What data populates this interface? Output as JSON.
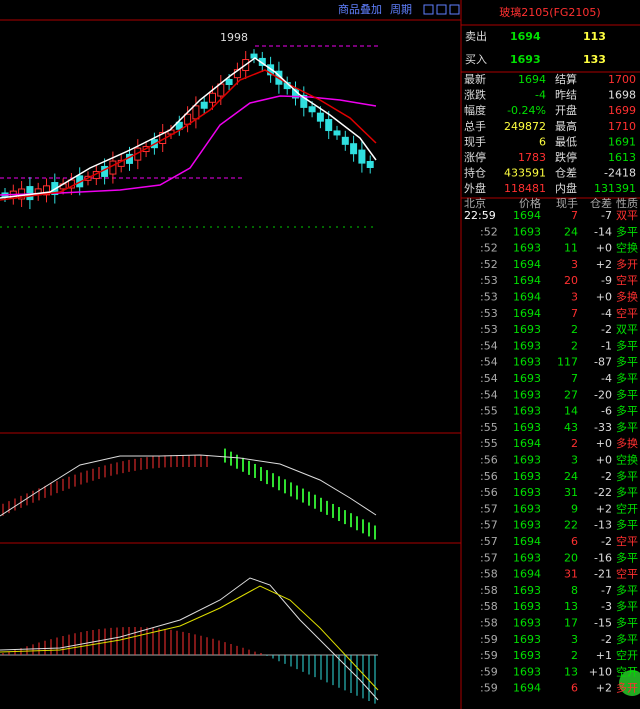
{
  "toolbar": {
    "overlay": "商品叠加",
    "period": "周期"
  },
  "chart": {
    "high_label": "1998"
  },
  "quote": {
    "title": "玻璃2105(FG2105)",
    "ask": {
      "label": "卖出",
      "price": "1694",
      "volume": "113"
    },
    "bid": {
      "label": "买入",
      "price": "1693",
      "volume": "133"
    },
    "stats": [
      [
        {
          "label": "最新",
          "value": "1694",
          "color": "#00e000"
        },
        {
          "label": "结算",
          "value": "1700",
          "color": "#ff3030"
        }
      ],
      [
        {
          "label": "涨跌",
          "value": "-4",
          "color": "#00e000"
        },
        {
          "label": "昨结",
          "value": "1698",
          "color": "#e0e0e0"
        }
      ],
      [
        {
          "label": "幅度",
          "value": "-0.24%",
          "color": "#00e000"
        },
        {
          "label": "开盘",
          "value": "1699",
          "color": "#ff3030"
        }
      ],
      [
        {
          "label": "总手",
          "value": "249872",
          "color": "#ffff40"
        },
        {
          "label": "最高",
          "value": "1710",
          "color": "#ff3030"
        }
      ],
      [
        {
          "label": "现手",
          "value": "6",
          "color": "#ffff40"
        },
        {
          "label": "最低",
          "value": "1691",
          "color": "#00e000"
        }
      ],
      [
        {
          "label": "涨停",
          "value": "1783",
          "color": "#ff3030"
        },
        {
          "label": "跌停",
          "value": "1613",
          "color": "#00e000"
        }
      ],
      [
        {
          "label": "持仓",
          "value": "433591",
          "color": "#ffff40"
        },
        {
          "label": "仓差",
          "value": "-2418",
          "color": "#e0e0e0"
        }
      ],
      [
        {
          "label": "外盘",
          "value": "118481",
          "color": "#ff3030"
        },
        {
          "label": "内盘",
          "value": "131391",
          "color": "#00e000"
        }
      ]
    ]
  },
  "ticks": {
    "header": [
      "北京",
      "价格",
      "现手",
      "仓差",
      "性质"
    ],
    "rows": [
      {
        "time": "22:59",
        "price": "1694",
        "vol": "7",
        "oi": "-7",
        "kind": "双平",
        "color": "#ff3030"
      },
      {
        "time": ":52",
        "price": "1693",
        "vol": "24",
        "oi": "-14",
        "kind": "多平",
        "color": "#00e000"
      },
      {
        "time": ":52",
        "price": "1693",
        "vol": "11",
        "oi": "+0",
        "kind": "空换",
        "color": "#00e000"
      },
      {
        "time": ":52",
        "price": "1694",
        "vol": "3",
        "oi": "+2",
        "kind": "多开",
        "color": "#ff3030"
      },
      {
        "time": ":53",
        "price": "1694",
        "vol": "20",
        "oi": "-9",
        "kind": "空平",
        "color": "#ff3030"
      },
      {
        "time": ":53",
        "price": "1694",
        "vol": "3",
        "oi": "+0",
        "kind": "多换",
        "color": "#ff3030"
      },
      {
        "time": ":53",
        "price": "1694",
        "vol": "7",
        "oi": "-4",
        "kind": "空平",
        "color": "#ff3030"
      },
      {
        "time": ":53",
        "price": "1693",
        "vol": "2",
        "oi": "-2",
        "kind": "双平",
        "color": "#00e000"
      },
      {
        "time": ":54",
        "price": "1693",
        "vol": "2",
        "oi": "-1",
        "kind": "多平",
        "color": "#00e000"
      },
      {
        "time": ":54",
        "price": "1693",
        "vol": "117",
        "oi": "-87",
        "kind": "多平",
        "color": "#00e000"
      },
      {
        "time": ":54",
        "price": "1693",
        "vol": "7",
        "oi": "-4",
        "kind": "多平",
        "color": "#00e000"
      },
      {
        "time": ":54",
        "price": "1693",
        "vol": "27",
        "oi": "-20",
        "kind": "多平",
        "color": "#00e000"
      },
      {
        "time": ":55",
        "price": "1693",
        "vol": "14",
        "oi": "-6",
        "kind": "多平",
        "color": "#00e000"
      },
      {
        "time": ":55",
        "price": "1693",
        "vol": "43",
        "oi": "-33",
        "kind": "多平",
        "color": "#00e000"
      },
      {
        "time": ":55",
        "price": "1694",
        "vol": "2",
        "oi": "+0",
        "kind": "多换",
        "color": "#ff3030"
      },
      {
        "time": ":56",
        "price": "1693",
        "vol": "3",
        "oi": "+0",
        "kind": "空换",
        "color": "#00e000"
      },
      {
        "time": ":56",
        "price": "1693",
        "vol": "24",
        "oi": "-2",
        "kind": "多平",
        "color": "#00e000"
      },
      {
        "time": ":56",
        "price": "1693",
        "vol": "31",
        "oi": "-22",
        "kind": "多平",
        "color": "#00e000"
      },
      {
        "time": ":57",
        "price": "1693",
        "vol": "9",
        "oi": "+2",
        "kind": "空开",
        "color": "#00e000"
      },
      {
        "time": ":57",
        "price": "1693",
        "vol": "22",
        "oi": "-13",
        "kind": "多平",
        "color": "#00e000"
      },
      {
        "time": ":57",
        "price": "1694",
        "vol": "6",
        "oi": "-2",
        "kind": "空平",
        "color": "#ff3030"
      },
      {
        "time": ":57",
        "price": "1693",
        "vol": "20",
        "oi": "-16",
        "kind": "多平",
        "color": "#00e000"
      },
      {
        "time": ":58",
        "price": "1694",
        "vol": "31",
        "oi": "-21",
        "kind": "空平",
        "color": "#ff3030"
      },
      {
        "time": ":58",
        "price": "1693",
        "vol": "8",
        "oi": "-7",
        "kind": "多平",
        "color": "#00e000"
      },
      {
        "time": ":58",
        "price": "1693",
        "vol": "13",
        "oi": "-3",
        "kind": "多平",
        "color": "#00e000"
      },
      {
        "time": ":58",
        "price": "1693",
        "vol": "17",
        "oi": "-15",
        "kind": "多平",
        "color": "#00e000"
      },
      {
        "time": ":59",
        "price": "1693",
        "vol": "3",
        "oi": "-2",
        "kind": "多平",
        "color": "#00e000"
      },
      {
        "time": ":59",
        "price": "1693",
        "vol": "2",
        "oi": "+1",
        "kind": "空开",
        "color": "#00e000"
      },
      {
        "time": ":59",
        "price": "1693",
        "vol": "13",
        "oi": "+10",
        "kind": "空开",
        "color": "#00e000"
      },
      {
        "time": ":59",
        "price": "1694",
        "vol": "6",
        "oi": "+2",
        "kind": "多开",
        "color": "#ff3030"
      }
    ]
  }
}
